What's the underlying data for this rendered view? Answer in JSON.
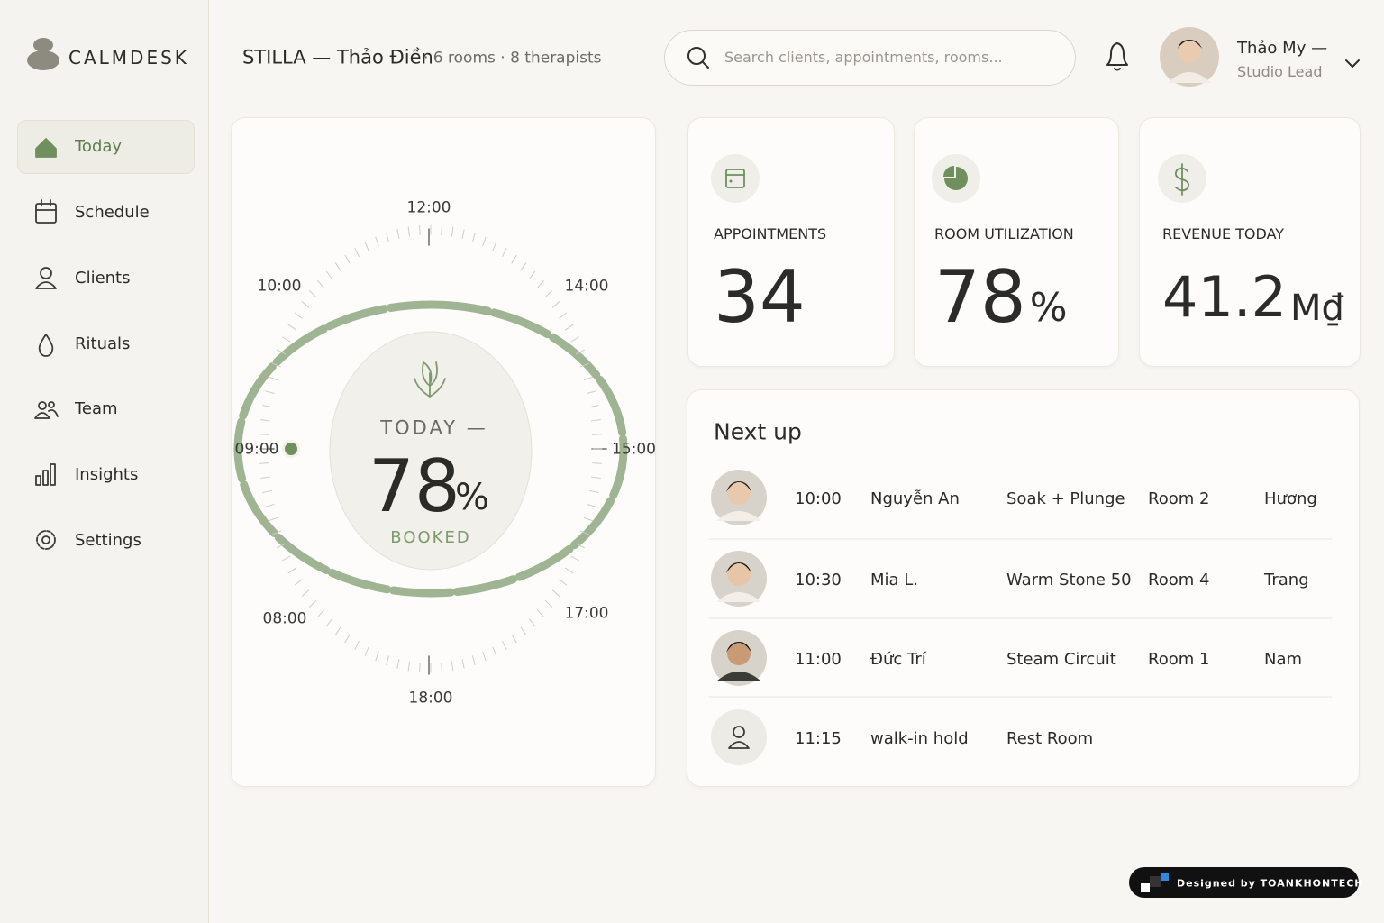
{
  "brand": "CALMDESK",
  "nav": [
    "Today",
    "Schedule",
    "Clients",
    "Rituals",
    "Team",
    "Insights",
    "Settings"
  ],
  "header": {
    "title": "STILLA — Thảo Điền",
    "meta": "· 6 rooms · 8 therapists",
    "search_placeholder": "Search clients, appointments, rooms...",
    "user_name": "Thảo My —",
    "user_role": "Studio Lead"
  },
  "dial": {
    "label_top": "TODAY —",
    "value": "78",
    "unit": "%",
    "label_bottom": "BOOKED",
    "hours": [
      "12:00",
      "14:00",
      "15:00",
      "17:00",
      "18:00",
      "08:00",
      "09:00",
      "10:00"
    ]
  },
  "stats": [
    {
      "label": "APPOINTMENTS",
      "value": "34"
    },
    {
      "label": "ROOM UTILIZATION",
      "value": "78",
      "unit": "%"
    },
    {
      "label": "REVENUE TODAY",
      "value": "41.2",
      "unit": "M₫"
    }
  ],
  "next_up": {
    "title": "Next up",
    "rows": [
      [
        "10:00",
        "Nguyễn An",
        "Soak + Plunge",
        "Room 2",
        "Hương"
      ],
      [
        "10:30",
        "Mia L.",
        "Warm Stone 50",
        "Room 4",
        "Trang"
      ],
      [
        "11:00",
        "Đức Trí",
        "Steam Circuit",
        "Room 1",
        "Nam"
      ],
      [
        "11:15",
        "walk-in hold",
        "Rest Room"
      ]
    ]
  },
  "badge": "Designed by TOANKHONTECH"
}
